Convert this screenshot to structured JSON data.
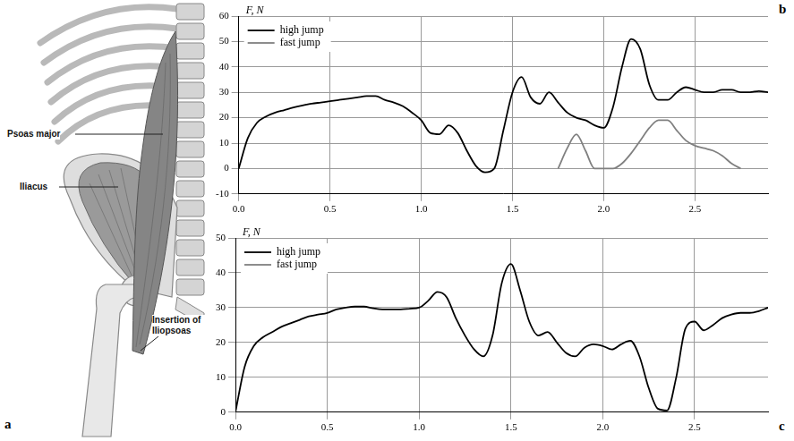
{
  "chart_data": [
    {
      "type": "line",
      "panel": "b",
      "y_label": "F, N",
      "x": [
        0,
        0.05,
        0.1,
        0.15,
        0.2,
        0.25,
        0.3,
        0.35,
        0.4,
        0.45,
        0.5,
        0.55,
        0.6,
        0.65,
        0.7,
        0.75,
        0.8,
        0.85,
        0.9,
        0.95,
        1,
        1.05,
        1.1,
        1.15,
        1.2,
        1.25,
        1.3,
        1.35,
        1.4,
        1.45,
        1.5,
        1.55,
        1.6,
        1.65,
        1.7,
        1.75,
        1.8,
        1.85,
        1.9,
        1.95,
        2,
        2.05,
        2.1,
        2.15,
        2.2,
        2.25,
        2.3,
        2.35,
        2.4,
        2.45,
        2.5,
        2.55,
        2.6,
        2.65,
        2.7,
        2.75,
        2.8,
        2.85,
        2.9
      ],
      "series": [
        {
          "name": "high jump",
          "color": "#000000",
          "values": [
            0,
            12,
            18,
            20.5,
            22,
            23,
            24,
            24.8,
            25.5,
            26,
            26.5,
            27,
            27.5,
            28,
            28.5,
            28.5,
            27,
            26,
            24.5,
            22,
            19,
            14,
            13.5,
            17,
            14,
            7,
            1,
            -1.5,
            0,
            15,
            30,
            36,
            28,
            25.5,
            30,
            26,
            22,
            20,
            19,
            17,
            16,
            24,
            40,
            51,
            47,
            33,
            27,
            27,
            30,
            32,
            31,
            30,
            30,
            31,
            31,
            30,
            30,
            30.5,
            30
          ]
        },
        {
          "name": "fast jump",
          "color": "#808080",
          "values": [
            null,
            null,
            null,
            null,
            null,
            null,
            null,
            null,
            null,
            null,
            null,
            null,
            null,
            null,
            null,
            null,
            null,
            null,
            null,
            null,
            null,
            null,
            null,
            null,
            null,
            null,
            null,
            null,
            null,
            null,
            null,
            null,
            null,
            null,
            null,
            0,
            8,
            13.5,
            7,
            0,
            0,
            0,
            2,
            6,
            11,
            16,
            19,
            19,
            15,
            11,
            9,
            8,
            7,
            5,
            2,
            0,
            null,
            null,
            null
          ]
        }
      ],
      "xlim": [
        0,
        2.9
      ],
      "xticks": [
        {
          "value": 0,
          "label": "0.0"
        },
        0.5,
        {
          "value": 1,
          "label": "1.0"
        },
        1.5,
        {
          "value": 2,
          "label": "2.0"
        },
        2.5
      ],
      "ylim": [
        -10,
        60
      ],
      "yticks": [
        -10,
        0,
        10,
        20,
        30,
        40,
        50,
        60
      ],
      "grid": true,
      "legend": "upper left"
    },
    {
      "type": "line",
      "panel": "c",
      "y_label": "F, N",
      "x": [
        0,
        0.05,
        0.1,
        0.15,
        0.2,
        0.25,
        0.3,
        0.35,
        0.4,
        0.45,
        0.5,
        0.55,
        0.6,
        0.65,
        0.7,
        0.75,
        0.8,
        0.85,
        0.9,
        0.95,
        1,
        1.05,
        1.1,
        1.15,
        1.2,
        1.25,
        1.3,
        1.35,
        1.4,
        1.45,
        1.5,
        1.55,
        1.6,
        1.65,
        1.7,
        1.75,
        1.8,
        1.85,
        1.9,
        1.95,
        2,
        2.05,
        2.1,
        2.15,
        2.2,
        2.25,
        2.3,
        2.35,
        2.4,
        2.45,
        2.5,
        2.55,
        2.6,
        2.65,
        2.7,
        2.75,
        2.8,
        2.85,
        2.9
      ],
      "series": [
        {
          "name": "high jump",
          "color": "#000000",
          "values": [
            0,
            13,
            19,
            21.5,
            23,
            24.5,
            25.5,
            26.5,
            27.5,
            28,
            28.5,
            29.5,
            30,
            30.3,
            30.3,
            29.8,
            29.5,
            29.5,
            29.5,
            29.7,
            30,
            32,
            34.5,
            33,
            27,
            22,
            18,
            16,
            22,
            37,
            42.5,
            35,
            26,
            22,
            23,
            20,
            17,
            16,
            18.5,
            19.5,
            19,
            18,
            19.5,
            20.5,
            16,
            7,
            1,
            0.5,
            10,
            24,
            26,
            23.5,
            25,
            27,
            28,
            28.5,
            28.5,
            29,
            30
          ]
        },
        {
          "name": "fast jump",
          "color": "#808080",
          "values": [
            null,
            null,
            null,
            null,
            null,
            null,
            null,
            null,
            null,
            null,
            null,
            null,
            null,
            null,
            null,
            null,
            null,
            null,
            null,
            null,
            null,
            null,
            null,
            null,
            null,
            null,
            null,
            null,
            null,
            null,
            null,
            null,
            null,
            null,
            null,
            null,
            null,
            null,
            null,
            null,
            null,
            null,
            null,
            null,
            null,
            null,
            null,
            null,
            null,
            null,
            null,
            null,
            null,
            null,
            null,
            null,
            null,
            null,
            null
          ]
        }
      ],
      "xlim": [
        0,
        2.9
      ],
      "xticks": [
        {
          "value": 0,
          "label": "0.0"
        },
        0.5,
        {
          "value": 1,
          "label": "1.0"
        },
        1.5,
        {
          "value": 2,
          "label": "2.0"
        },
        2.5
      ],
      "ylim": [
        0,
        50
      ],
      "yticks": [
        0,
        10,
        20,
        30,
        40,
        50
      ],
      "grid": true,
      "legend": "upper left"
    }
  ],
  "diagram": {
    "panel": "a",
    "labels": [
      "Psoas major",
      "Iliacus",
      "Insertion of Iliopsoas"
    ]
  }
}
